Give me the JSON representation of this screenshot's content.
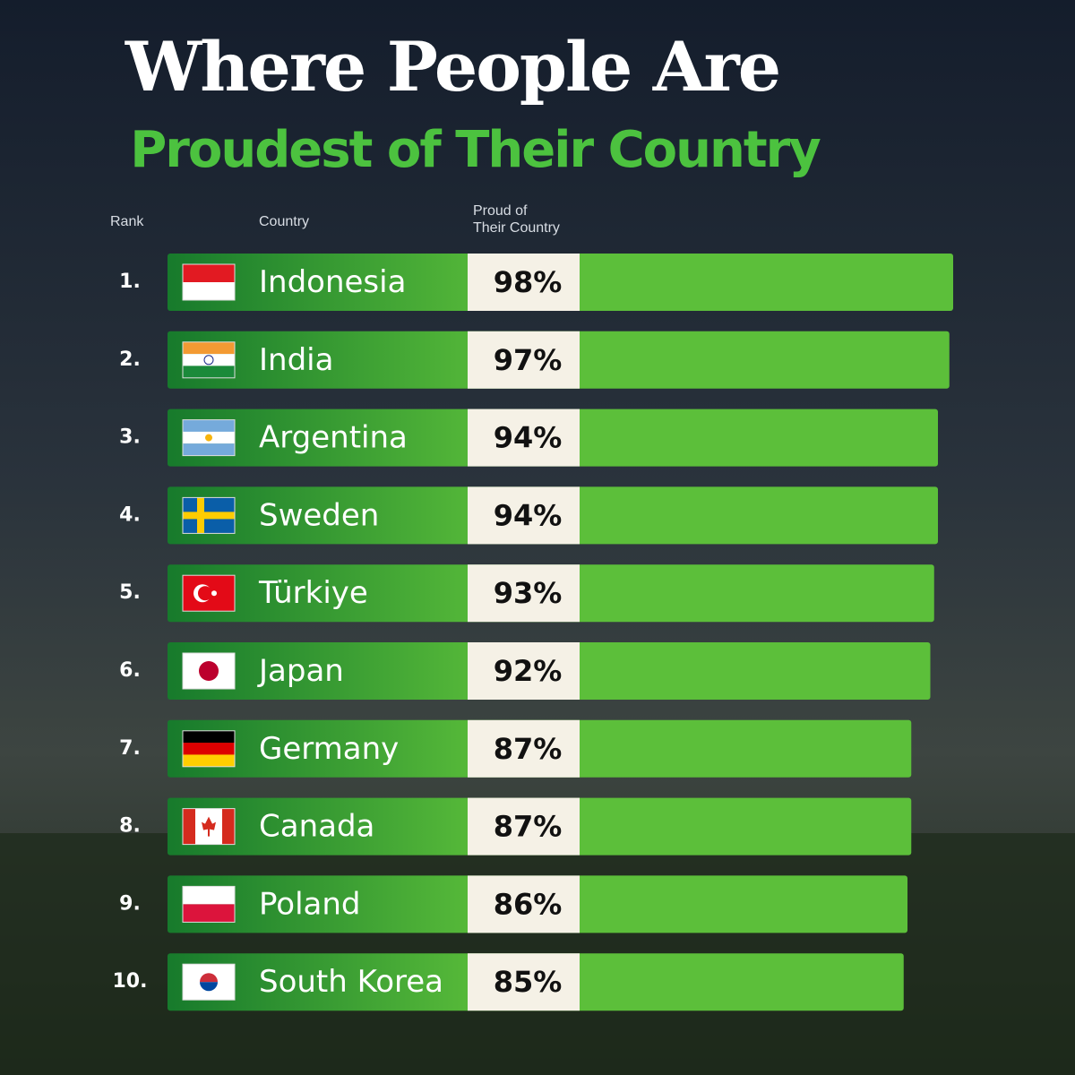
{
  "chart_data": {
    "type": "bar",
    "title": "Where People Are",
    "subtitle": "Proudest of Their Country",
    "column_headers": [
      "Rank",
      "Country",
      "Proud of\nTheir Country"
    ],
    "ranks": [
      "1.",
      "2.",
      "3.",
      "4.",
      "5.",
      "6.",
      "7.",
      "8.",
      "9.",
      "10."
    ],
    "categories": [
      "Indonesia",
      "India",
      "Argentina",
      "Sweden",
      "Türkiye",
      "Japan",
      "Germany",
      "Canada",
      "Poland",
      "South Korea"
    ],
    "values": [
      98,
      97,
      94,
      94,
      93,
      92,
      87,
      87,
      86,
      85
    ],
    "value_labels": [
      "98%",
      "97%",
      "94%",
      "94%",
      "93%",
      "92%",
      "87%",
      "87%",
      "86%",
      "85%"
    ],
    "color": "#5cbf3a"
  }
}
